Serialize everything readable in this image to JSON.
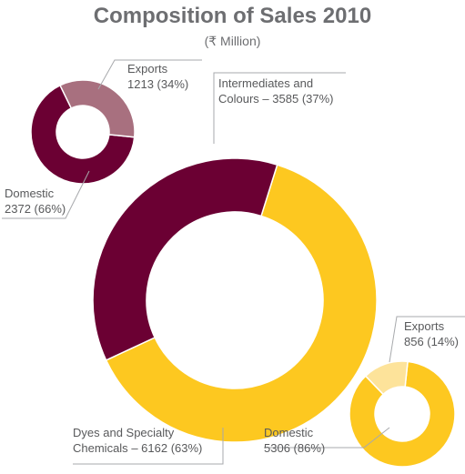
{
  "chart_data": [
    {
      "type": "donut",
      "title": "Composition of Sales 2010",
      "subtitle": "(₹ Million)",
      "categories": [
        "Intermediates and Colours",
        "Dyes and Specialty Chemicals"
      ],
      "values": [
        3585,
        6162
      ],
      "value_labels": [
        "3585 (37%)",
        "6162 (63%)"
      ],
      "label_separator": "–",
      "colors": [
        "#6b0033",
        "#fdc820"
      ]
    },
    {
      "type": "donut",
      "categories": [
        "Exports",
        "Domestic"
      ],
      "values": [
        1213,
        2372
      ],
      "value_labels": [
        "1213 (34%)",
        "2372 (66%)"
      ],
      "colors": [
        "#a8707f",
        "#6b0033"
      ]
    },
    {
      "type": "donut",
      "categories": [
        "Exports",
        "Domestic"
      ],
      "values": [
        856,
        5306
      ],
      "value_labels": [
        "856 (14%)",
        "5306 (86%)"
      ],
      "colors": [
        "#fde39a",
        "#fdc820"
      ]
    }
  ]
}
